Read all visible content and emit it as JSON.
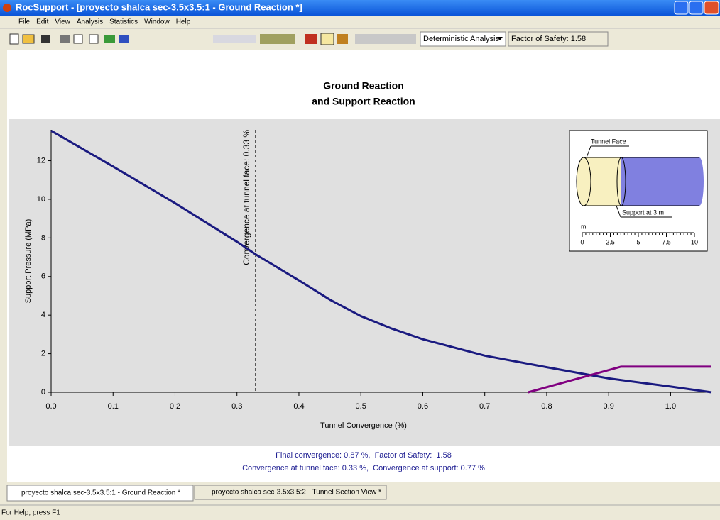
{
  "window": {
    "title": "RocSupport - [proyecto shalca sec-3.5x3.5:1 - Ground Reaction *]",
    "menu": [
      "File",
      "Edit",
      "View",
      "Analysis",
      "Statistics",
      "Window",
      "Help"
    ]
  },
  "toolbar": {
    "analysis_mode": "Deterministic Analysis",
    "factor_of_safety": "Factor of Safety: 1.58"
  },
  "chart_data": {
    "type": "line",
    "title": "Ground Reaction",
    "subtitle": "and Support Reaction",
    "x_label": "Tunnel Convergence (%)",
    "y_label": "Support Pressure (MPa)",
    "xlim": [
      0,
      1.066
    ],
    "ylim": [
      0,
      13.6
    ],
    "xticks": [
      {
        "value": 0,
        "label": "0.0"
      },
      0.1,
      0.2,
      0.3,
      0.4,
      0.5,
      0.6,
      0.7,
      0.8,
      0.9,
      {
        "value": 1,
        "label": "1.0"
      }
    ],
    "yticks": [
      0,
      2,
      4,
      6,
      8,
      10,
      12
    ],
    "series": [
      {
        "color": "#1a1a80",
        "x": [
          0,
          0.1,
          0.2,
          0.3,
          0.33,
          0.4,
          0.45,
          0.5,
          0.55,
          0.6,
          0.7,
          0.8,
          0.9,
          1.0,
          1.066
        ],
        "values": [
          13.55,
          11.7,
          9.8,
          7.8,
          7.15,
          5.8,
          4.8,
          3.95,
          3.3,
          2.75,
          1.9,
          1.3,
          0.72,
          0.3,
          0.0
        ]
      },
      {
        "color": "#800080",
        "x": [
          0.77,
          0.92,
          1.066
        ],
        "values": [
          0,
          1.33,
          1.33
        ]
      }
    ],
    "annotations": [
      {
        "x": 0.33,
        "label": "Convergence at tunnel face: 0.33 %"
      }
    ],
    "inset": {
      "face_label": "Tunnel Face",
      "support_label": "Support at 3 m",
      "scale_unit": "m",
      "scale_labels": [
        "0",
        "2.5",
        "5",
        "7.5",
        "10"
      ]
    },
    "notes": [
      "Final convergence: 0.87 %,  Factor of Safety:  1.58",
      "Convergence at tunnel face: 0.33 %,  Convergence at support: 0.77 %"
    ]
  },
  "tabs": [
    "proyecto shalca sec-3.5x3.5:1 - Ground Reaction *",
    "proyecto shalca sec-3.5x3.5:2 - Tunnel Section View *"
  ],
  "status": "For Help, press F1"
}
